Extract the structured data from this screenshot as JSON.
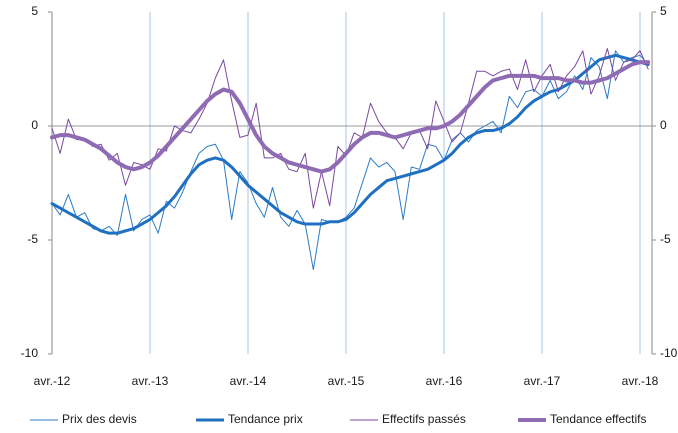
{
  "chart_data": {
    "type": "line",
    "categories": [
      "avr.-12",
      null,
      null,
      null,
      null,
      null,
      null,
      null,
      null,
      null,
      null,
      null,
      "avr.-13",
      null,
      null,
      null,
      null,
      null,
      null,
      null,
      null,
      null,
      null,
      null,
      "avr.-14",
      null,
      null,
      null,
      null,
      null,
      null,
      null,
      null,
      null,
      null,
      null,
      "avr.-15",
      null,
      null,
      null,
      null,
      null,
      null,
      null,
      null,
      null,
      null,
      null,
      "avr.-16",
      null,
      null,
      null,
      null,
      null,
      null,
      null,
      null,
      null,
      null,
      null,
      "avr.-17",
      null,
      null,
      null,
      null,
      null,
      null,
      null,
      null,
      null,
      null,
      null,
      "avr.-18",
      null
    ],
    "series": [
      {
        "name": "Prix des devis",
        "color": "#2b7bc8",
        "width": 1,
        "values": [
          -3.4,
          -3.9,
          -3.0,
          -4.0,
          -3.8,
          -4.5,
          -4.6,
          -4.4,
          -4.8,
          -3.0,
          -4.6,
          -4.1,
          -3.9,
          -4.7,
          -3.3,
          -3.6,
          -2.9,
          -2.0,
          -1.2,
          -0.9,
          -0.8,
          -1.5,
          -4.1,
          -2.0,
          -2.5,
          -3.4,
          -4.0,
          -2.7,
          -4.0,
          -4.4,
          -3.7,
          -4.3,
          -6.3,
          -4.1,
          -4.2,
          -4.2,
          -4.0,
          -3.6,
          -2.5,
          -1.4,
          -1.8,
          -1.6,
          -2.0,
          -4.1,
          -1.8,
          -1.9,
          -0.8,
          -0.9,
          -1.5,
          -0.6,
          -0.3,
          -0.7,
          -0.2,
          0.0,
          0.2,
          -0.3,
          1.3,
          0.8,
          1.5,
          1.6,
          1.3,
          2.0,
          1.2,
          1.5,
          2.2,
          1.6,
          3.0,
          2.6,
          1.2,
          3.3,
          2.8,
          3.0,
          3.1,
          2.7
        ]
      },
      {
        "name": "Tendance prix",
        "color": "#1f70c1",
        "width": 3,
        "values": [
          -3.4,
          -3.6,
          -3.8,
          -4.0,
          -4.2,
          -4.4,
          -4.6,
          -4.7,
          -4.7,
          -4.6,
          -4.5,
          -4.3,
          -4.1,
          -3.8,
          -3.5,
          -3.1,
          -2.6,
          -2.1,
          -1.7,
          -1.5,
          -1.4,
          -1.5,
          -1.8,
          -2.2,
          -2.6,
          -2.9,
          -3.2,
          -3.5,
          -3.8,
          -4.0,
          -4.2,
          -4.3,
          -4.3,
          -4.3,
          -4.2,
          -4.2,
          -4.1,
          -3.8,
          -3.4,
          -3.0,
          -2.7,
          -2.4,
          -2.3,
          -2.2,
          -2.1,
          -2.0,
          -1.9,
          -1.7,
          -1.5,
          -1.2,
          -0.8,
          -0.5,
          -0.3,
          -0.2,
          -0.2,
          -0.1,
          0.1,
          0.4,
          0.8,
          1.1,
          1.3,
          1.5,
          1.6,
          1.8,
          2.0,
          2.3,
          2.6,
          2.9,
          3.0,
          3.1,
          3.0,
          2.9,
          2.8,
          2.7
        ]
      },
      {
        "name": "Effectifs passés",
        "color": "#7a4a9e",
        "width": 1,
        "axis": "y2",
        "values": [
          -0.1,
          -1.2,
          0.3,
          -0.6,
          -0.6,
          -0.9,
          -0.8,
          -1.5,
          -1.2,
          -2.6,
          -1.6,
          -1.7,
          -1.9,
          -1.0,
          -1.1,
          0.0,
          -0.2,
          -0.3,
          0.3,
          1.0,
          2.1,
          2.9,
          1.1,
          -0.5,
          -0.4,
          1.0,
          -1.4,
          -1.4,
          -1.2,
          -1.9,
          -2.0,
          -1.2,
          -3.6,
          -2.0,
          -3.5,
          -0.9,
          -1.3,
          -0.3,
          -0.5,
          1.0,
          0.2,
          -0.3,
          -0.5,
          -1.0,
          -0.3,
          -0.2,
          -1.0,
          1.1,
          0.2,
          -0.7,
          -0.3,
          1.0,
          2.4,
          2.4,
          2.2,
          2.4,
          2.5,
          1.6,
          2.9,
          1.5,
          2.2,
          2.7,
          1.5,
          2.2,
          2.6,
          3.3,
          1.4,
          2.2,
          3.4,
          2.0,
          2.8,
          2.9,
          3.3,
          2.5
        ]
      },
      {
        "name": "Tendance effectifs",
        "color": "#8f6bb3",
        "width": 4,
        "axis": "y2",
        "values": [
          -0.5,
          -0.4,
          -0.4,
          -0.5,
          -0.6,
          -0.8,
          -1.0,
          -1.3,
          -1.6,
          -1.8,
          -1.9,
          -1.8,
          -1.6,
          -1.3,
          -0.9,
          -0.5,
          -0.1,
          0.3,
          0.7,
          1.1,
          1.4,
          1.6,
          1.5,
          1.0,
          0.3,
          -0.4,
          -0.9,
          -1.2,
          -1.4,
          -1.6,
          -1.7,
          -1.8,
          -1.9,
          -2.0,
          -1.9,
          -1.6,
          -1.2,
          -0.8,
          -0.5,
          -0.3,
          -0.3,
          -0.4,
          -0.5,
          -0.4,
          -0.3,
          -0.2,
          -0.1,
          -0.1,
          0.0,
          0.2,
          0.5,
          0.9,
          1.3,
          1.7,
          2.0,
          2.1,
          2.2,
          2.2,
          2.2,
          2.2,
          2.1,
          2.1,
          2.1,
          2.0,
          2.0,
          1.9,
          1.9,
          2.0,
          2.1,
          2.3,
          2.5,
          2.7,
          2.8,
          2.8
        ]
      }
    ],
    "ylim": [
      -10,
      5
    ],
    "yticks": [
      -10,
      -5,
      0,
      5
    ],
    "y2lim": [
      -10,
      5
    ],
    "y2ticks": [
      -10,
      -5,
      0,
      5
    ],
    "grid": true,
    "legend": "bottom"
  }
}
